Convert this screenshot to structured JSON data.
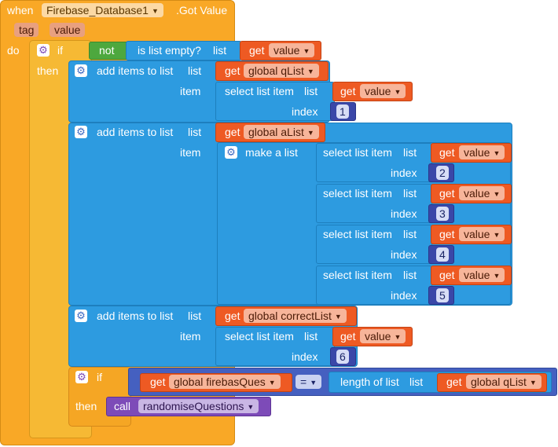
{
  "event": {
    "when_label": "when",
    "component": "Firebase_Database1",
    "event_name": ".Got Value",
    "params": [
      "tag",
      "value"
    ],
    "do_label": "do"
  },
  "if1": {
    "if_label": "if",
    "then_label": "then",
    "not_label": "not",
    "is_empty_label": "is list empty?",
    "list_label": "list",
    "get_label": "get",
    "var": "value"
  },
  "add_q": {
    "title": "add items to list",
    "list_label": "list",
    "item_label": "item",
    "get_label": "get",
    "target": "global qList",
    "select": {
      "title": "select list item",
      "list_label": "list",
      "index_label": "index",
      "get_label": "get",
      "var": "value",
      "index": "1"
    }
  },
  "add_a": {
    "title": "add items to list",
    "list_label": "list",
    "item_label": "item",
    "get_label": "get",
    "target": "global aList",
    "make_list": "make a list",
    "selects": [
      {
        "title": "select list item",
        "list_label": "list",
        "index_label": "index",
        "get_label": "get",
        "var": "value",
        "index": "2"
      },
      {
        "title": "select list item",
        "list_label": "list",
        "index_label": "index",
        "get_label": "get",
        "var": "value",
        "index": "3"
      },
      {
        "title": "select list item",
        "list_label": "list",
        "index_label": "index",
        "get_label": "get",
        "var": "value",
        "index": "4"
      },
      {
        "title": "select list item",
        "list_label": "list",
        "index_label": "index",
        "get_label": "get",
        "var": "value",
        "index": "5"
      }
    ]
  },
  "add_c": {
    "title": "add items to list",
    "list_label": "list",
    "item_label": "item",
    "get_label": "get",
    "target": "global correctList",
    "select": {
      "title": "select list item",
      "list_label": "list",
      "index_label": "index",
      "get_label": "get",
      "var": "value",
      "index": "6"
    }
  },
  "if2": {
    "if_label": "if",
    "then_label": "then",
    "get_label": "get",
    "left_var": "global firebasQues",
    "operator": "=",
    "length_label": "length of list",
    "list_label": "list",
    "right_get": "get",
    "right_var": "global qList",
    "call_label": "call",
    "procedure": "randomiseQuestions"
  },
  "colors": {
    "event": "#F9A826",
    "control": "#F6B934",
    "lists": "#2D9BE0",
    "variables": "#EE5A23",
    "math": "#3A47A8",
    "logic": "#4DA83E",
    "procedures": "#7D4BB8"
  },
  "icons": {
    "mutator": "gear-icon",
    "dropdown": "dropdown-arrow-icon"
  }
}
